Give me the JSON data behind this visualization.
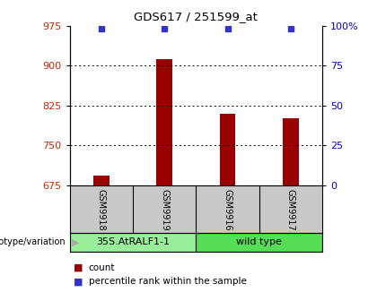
{
  "title": "GDS617 / 251599_at",
  "samples": [
    "GSM9918",
    "GSM9919",
    "GSM9916",
    "GSM9917"
  ],
  "counts": [
    693,
    912,
    810,
    800
  ],
  "percentiles": [
    98,
    98,
    98,
    98
  ],
  "ylim_left": [
    675,
    975
  ],
  "yticks_left": [
    675,
    750,
    825,
    900,
    975
  ],
  "ylim_right": [
    0,
    100
  ],
  "yticks_right": [
    0,
    25,
    50,
    75,
    100
  ],
  "ytick_labels_right": [
    "0",
    "25",
    "50",
    "75",
    "100%"
  ],
  "bar_color": "#990000",
  "dot_color": "#3333cc",
  "bar_bottom": 675,
  "grid_lines": [
    750,
    825,
    900
  ],
  "groups": [
    {
      "label": "35S.AtRALF1-1",
      "color": "#99ee99"
    },
    {
      "label": "wild type",
      "color": "#55dd55"
    }
  ],
  "genotype_label": "genotype/variation",
  "legend_count_label": "count",
  "legend_percentile_label": "percentile rank within the sample",
  "tick_label_color_left": "#cc2200",
  "tick_label_color_right": "#0000cc",
  "xaxis_bg_color": "#c8c8c8",
  "arrow_color": "#aaaaaa"
}
